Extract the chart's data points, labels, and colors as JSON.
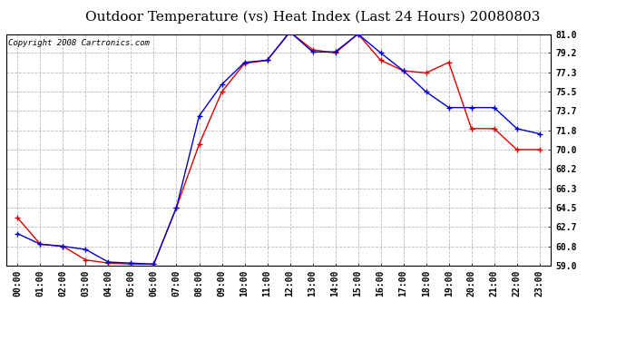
{
  "title": "Outdoor Temperature (vs) Heat Index (Last 24 Hours) 20080803",
  "copyright": "Copyright 2008 Cartronics.com",
  "hours": [
    "00:00",
    "01:00",
    "02:00",
    "03:00",
    "04:00",
    "05:00",
    "06:00",
    "07:00",
    "08:00",
    "09:00",
    "10:00",
    "11:00",
    "12:00",
    "13:00",
    "14:00",
    "15:00",
    "16:00",
    "17:00",
    "18:00",
    "19:00",
    "20:00",
    "21:00",
    "22:00",
    "23:00"
  ],
  "temp": [
    63.5,
    61.0,
    60.8,
    59.5,
    59.2,
    59.1,
    59.1,
    64.5,
    70.5,
    75.5,
    78.2,
    78.5,
    81.2,
    79.5,
    79.2,
    81.0,
    78.5,
    77.5,
    77.3,
    78.3,
    72.0,
    72.0,
    70.0,
    70.0
  ],
  "heat_index": [
    62.0,
    61.0,
    60.8,
    60.5,
    59.3,
    59.2,
    59.1,
    64.5,
    73.2,
    76.2,
    78.3,
    78.5,
    81.2,
    79.3,
    79.3,
    81.0,
    79.2,
    77.5,
    75.5,
    74.0,
    74.0,
    74.0,
    72.0,
    71.5
  ],
  "temp_color": "#dd0000",
  "heat_index_color": "#0000cc",
  "ytick_values": [
    59.0,
    60.8,
    62.7,
    64.5,
    66.3,
    68.2,
    70.0,
    71.8,
    73.7,
    75.5,
    77.3,
    79.2,
    81.0
  ],
  "ytick_labels": [
    "59.0",
    "60.8",
    "62.7",
    "64.5",
    "66.3",
    "68.2",
    "70.0",
    "71.8",
    "73.7",
    "75.5",
    "77.3",
    "79.2",
    "81.0"
  ],
  "ylim": [
    59.0,
    81.0
  ],
  "bg_color": "#ffffff",
  "plot_bg": "#ffffff",
  "grid_color": "#bbbbbb",
  "title_fontsize": 11,
  "copyright_fontsize": 6.5,
  "tick_fontsize": 7,
  "marker_size": 4
}
